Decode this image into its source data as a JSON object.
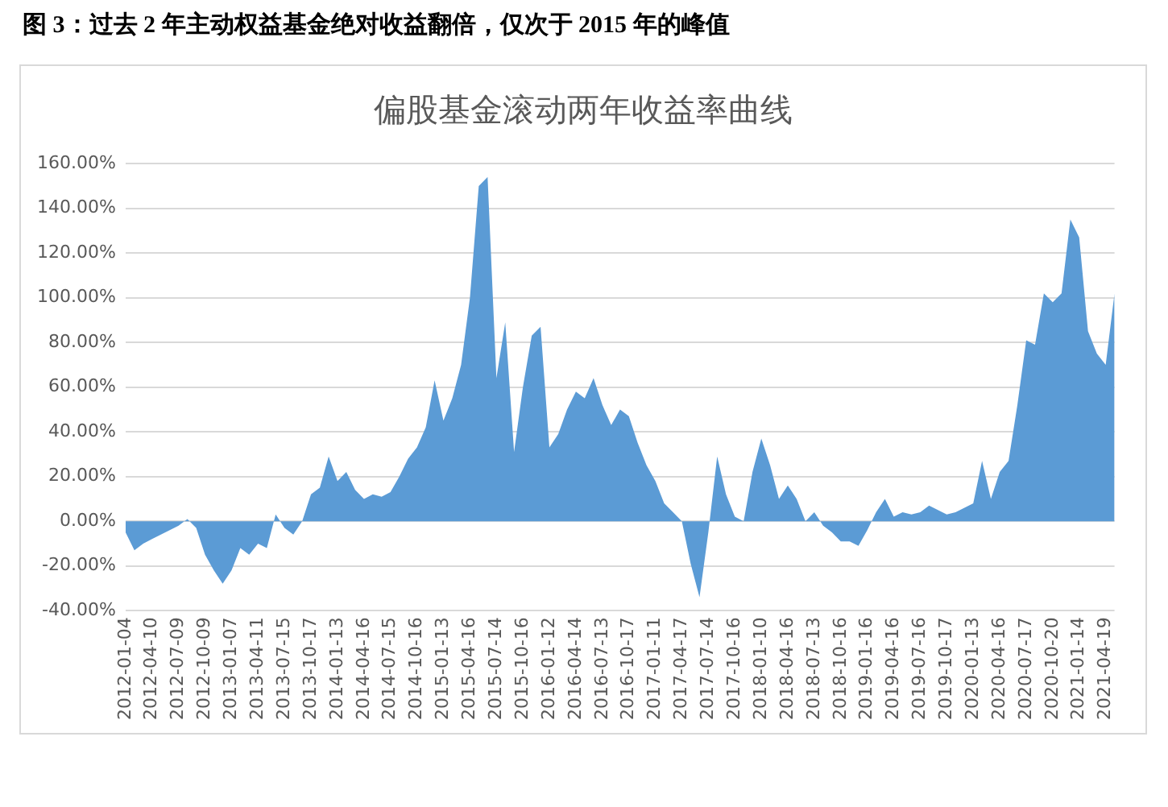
{
  "chart_data": {
    "type": "area",
    "title": "图 3：过去 2 年主动权益基金绝对收益翻倍，仅次于 2015 年的峰值",
    "subtitle": "偏股基金滚动两年收益率曲线",
    "categories": [
      "2012-01-04",
      null,
      null,
      "2012-04-10",
      null,
      null,
      "2012-07-09",
      null,
      null,
      "2012-10-09",
      null,
      null,
      "2013-01-07",
      null,
      null,
      "2013-04-11",
      null,
      null,
      "2013-07-15",
      null,
      null,
      "2013-10-17",
      null,
      null,
      "2014-01-13",
      null,
      null,
      "2014-04-16",
      null,
      null,
      "2014-07-15",
      null,
      null,
      "2014-10-16",
      null,
      null,
      "2015-01-13",
      null,
      null,
      "2015-04-16",
      null,
      null,
      "2015-07-14",
      null,
      null,
      "2015-10-16",
      null,
      null,
      "2016-01-12",
      null,
      null,
      "2016-04-14",
      null,
      null,
      "2016-07-13",
      null,
      null,
      "2016-10-17",
      null,
      null,
      "2017-01-11",
      null,
      null,
      "2017-04-17",
      null,
      null,
      "2017-07-14",
      null,
      null,
      "2017-10-16",
      null,
      null,
      "2018-01-10",
      null,
      null,
      "2018-04-16",
      null,
      null,
      "2018-07-13",
      null,
      null,
      "2018-10-16",
      null,
      null,
      "2019-01-16",
      null,
      null,
      "2019-04-16",
      null,
      null,
      "2019-07-16",
      null,
      null,
      "2019-10-17",
      null,
      null,
      "2020-01-13",
      null,
      null,
      "2020-04-16",
      null,
      null,
      "2020-07-17",
      null,
      null,
      "2020-10-20",
      null,
      null,
      "2021-01-14",
      null,
      null,
      "2021-04-19",
      null
    ],
    "series": [
      {
        "color": "#5b9bd5",
        "values": [
          -5,
          -13,
          -10,
          -8,
          -6,
          -4,
          -2,
          1,
          -3,
          -15,
          -22,
          -28,
          -22,
          -12,
          -15,
          -10,
          -12,
          3,
          -3,
          -6,
          0,
          12,
          15,
          29,
          18,
          22,
          14,
          10,
          12,
          11,
          13,
          20,
          28,
          33,
          42,
          63,
          45,
          55,
          70,
          100,
          150,
          154,
          64,
          89,
          31,
          60,
          83,
          87,
          33,
          39,
          50,
          58,
          55,
          64,
          52,
          43,
          50,
          47,
          35,
          25,
          18,
          8,
          4,
          0,
          -19,
          -34,
          -5,
          29,
          12,
          2,
          0,
          22,
          37,
          25,
          10,
          16,
          10,
          0,
          4,
          -2,
          -5,
          -9,
          -9,
          -11,
          -4,
          4,
          10,
          2,
          4,
          3,
          4,
          7,
          5,
          3,
          4,
          6,
          8,
          27,
          10,
          22,
          27,
          52,
          81,
          79,
          102,
          98,
          102,
          135,
          127,
          85,
          75,
          70,
          102
        ]
      }
    ],
    "ylim": [
      -40,
      160
    ],
    "yticks": [
      {
        "value": -40,
        "label": "-40.00%"
      },
      {
        "value": -20,
        "label": "-20.00%"
      },
      {
        "value": 0,
        "label": "0.00%"
      },
      {
        "value": 20,
        "label": "20.00%"
      },
      {
        "value": 40,
        "label": "40.00%"
      },
      {
        "value": 60,
        "label": "60.00%"
      },
      {
        "value": 80,
        "label": "80.00%"
      },
      {
        "value": 100,
        "label": "100.00%"
      },
      {
        "value": 120,
        "label": "120.00%"
      },
      {
        "value": 140,
        "label": "140.00%"
      },
      {
        "value": 160,
        "label": "160.00%"
      }
    ],
    "grid": "y",
    "legend": false
  }
}
